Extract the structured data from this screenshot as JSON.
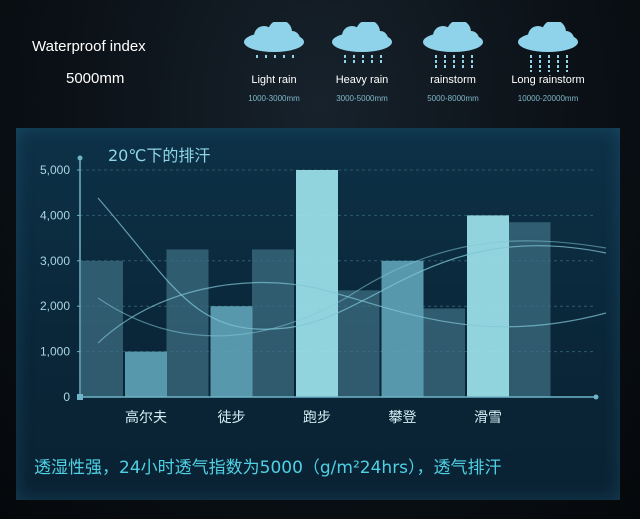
{
  "header": {
    "waterproof_label": "Waterproof index",
    "waterproof_value": "5000mm"
  },
  "rain_levels": [
    {
      "name": "Light rain",
      "range": "1000-3000mm",
      "drops": 1,
      "icon": "cloud-rain-icon"
    },
    {
      "name": "Heavy rain",
      "range": "3000-5000mm",
      "drops": 2,
      "icon": "cloud-rain-icon"
    },
    {
      "name": "rainstorm",
      "range": "5000-8000mm",
      "drops": 3,
      "icon": "cloud-rain-icon"
    },
    {
      "name": "Long rainstorm",
      "range": "10000-20000mm",
      "drops": 4,
      "icon": "cloud-rain-icon"
    }
  ],
  "colors": {
    "bar_main": "#9ee3ec",
    "bar_secondary": "#5fa2b6",
    "bar_back": "#3d6e82",
    "axis": "#6fb4c8",
    "text_cyan": "#4fd0e4",
    "cloud": "#8fd3ea"
  },
  "chart_data": {
    "type": "bar",
    "title": "20℃下的排汗",
    "categories": [
      "高尔夫",
      "徒步",
      "跑步",
      "攀登",
      "滑雪"
    ],
    "values": [
      1000,
      2000,
      5000,
      3000,
      4000
    ],
    "background_values": [
      3000,
      3250,
      3250,
      2350,
      1950,
      3850
    ],
    "y_ticks": [
      "0",
      "1,000",
      "2,000",
      "3,000",
      "4,000",
      "5,000"
    ],
    "ylim": [
      0,
      5000
    ],
    "grid": true,
    "decorative_curves": 3
  },
  "caption": "透湿性强，24小时透气指数为5000（g/m²24hrs），透气排汗"
}
